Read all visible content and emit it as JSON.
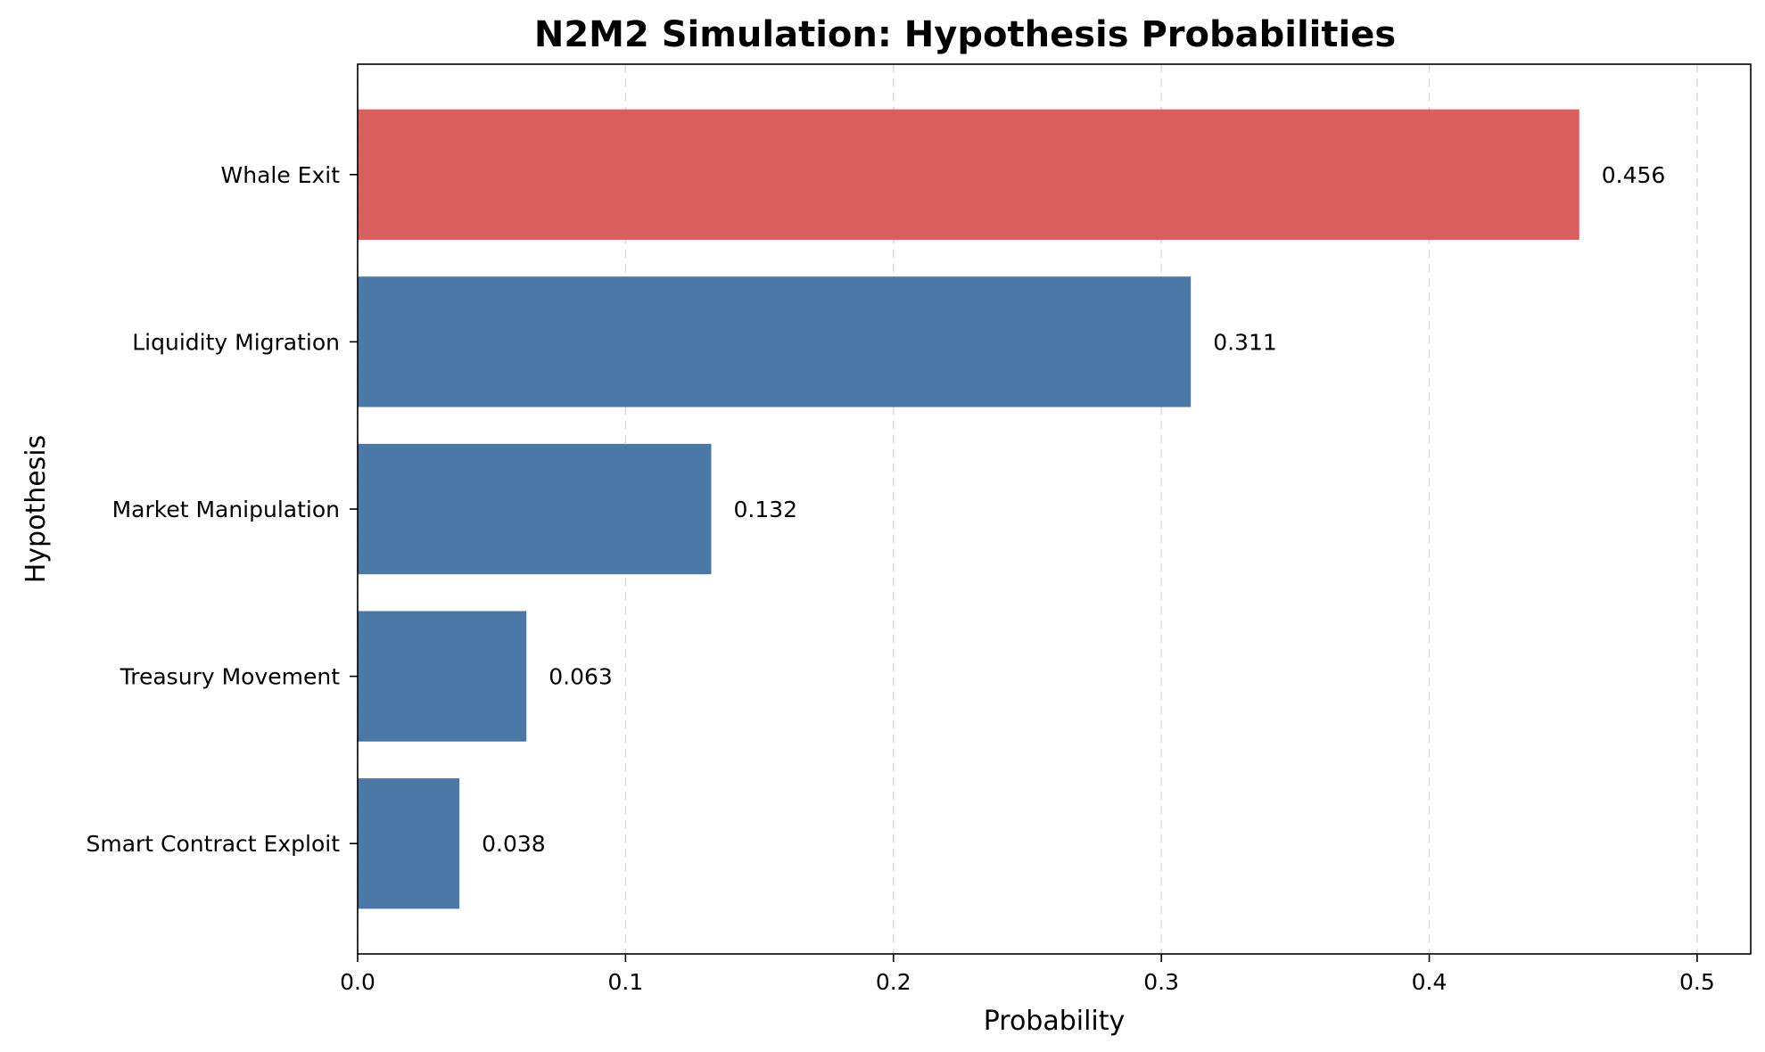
{
  "chart_data": {
    "type": "bar",
    "orientation": "horizontal",
    "title": "N2M2 Simulation: Hypothesis Probabilities",
    "xlabel": "Probability",
    "ylabel": "Hypothesis",
    "categories": [
      "Whale Exit",
      "Liquidity Migration",
      "Market Manipulation",
      "Treasury Movement",
      "Smart Contract Exploit"
    ],
    "values": [
      0.456,
      0.311,
      0.132,
      0.063,
      0.038
    ],
    "value_labels": [
      "0.456",
      "0.311",
      "0.132",
      "0.063",
      "0.038"
    ],
    "xlim": [
      0,
      0.52
    ],
    "xticks": [
      0.0,
      0.1,
      0.2,
      0.3,
      0.4,
      0.5
    ],
    "xtick_labels": [
      "0.0",
      "0.1",
      "0.2",
      "0.3",
      "0.4",
      "0.5"
    ],
    "grid": "x-dashed",
    "highlight_index": 0,
    "colors": {
      "highlight": "#d95f5f",
      "default": "#4c78a8"
    }
  }
}
